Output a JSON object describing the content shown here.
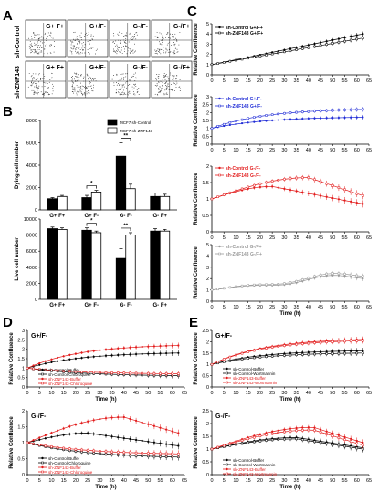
{
  "panel_labels": {
    "A": "A",
    "B": "B",
    "C": "C",
    "D": "D",
    "E": "E"
  },
  "panelA": {
    "row_labels": [
      "sh-Control",
      "sh-ZNF143"
    ],
    "col_labels": [
      "G+ F+",
      "G+/F-",
      "G-/F-",
      "G-/F+"
    ],
    "row2_col_labels": [
      "G+ F+",
      "G+/F-",
      "G-/F-",
      "G-/F+"
    ]
  },
  "colors": {
    "black": "#000000",
    "blue": "#1f2bd6",
    "red": "#e21a1a",
    "gray": "#9a9a9a"
  },
  "chart_data": [
    {
      "id": "B1",
      "type": "bar",
      "ylabel": "Dying cell number",
      "categories": [
        "G+ F+",
        "G+ F-",
        "G- F-",
        "G- F+"
      ],
      "ylim": [
        0,
        8000
      ],
      "yticks": [
        0,
        2000,
        4000,
        6000,
        8000
      ],
      "series": [
        {
          "name": "MCF7 sh-Control",
          "values": [
            1000,
            1100,
            4800,
            1200
          ],
          "err": [
            100,
            200,
            1200,
            300
          ]
        },
        {
          "name": "MCF7 sh-ZNF143",
          "values": [
            1200,
            1600,
            1900,
            1200
          ],
          "err": [
            100,
            150,
            400,
            200
          ]
        }
      ],
      "sig": [
        {
          "cat": 1,
          "text": "*"
        },
        {
          "cat": 2,
          "text": "**"
        }
      ]
    },
    {
      "id": "B2",
      "type": "bar",
      "ylabel": "Live cell number",
      "categories": [
        "G+ F+",
        "G+ F-",
        "G- F-",
        "G- F+"
      ],
      "ylim": [
        0,
        10000
      ],
      "yticks": [
        0,
        2000,
        4000,
        6000,
        8000,
        10000
      ],
      "series": [
        {
          "name": "MCF7 sh-Control",
          "values": [
            8800,
            8600,
            5100,
            8500
          ],
          "err": [
            200,
            300,
            1200,
            300
          ]
        },
        {
          "name": "MCF7 sh-ZNF143",
          "values": [
            8700,
            8300,
            8000,
            8500
          ],
          "err": [
            200,
            200,
            300,
            200
          ]
        }
      ],
      "sig": [
        {
          "cat": 1,
          "text": "*"
        },
        {
          "cat": 2,
          "text": "**"
        }
      ]
    },
    {
      "id": "C1",
      "type": "line",
      "ylabel": "Relative Confluence",
      "xlabel": "",
      "x_start": 0,
      "x_step": 2.5,
      "xlim": [
        0,
        65
      ],
      "ylim": [
        0,
        5
      ],
      "yticks": [
        0,
        1,
        2,
        3,
        4,
        5
      ],
      "series": [
        {
          "name": "sh-Control G+/F+",
          "color": "black",
          "marker": "filled",
          "y0": 1,
          "y1": 4.0,
          "shape": "lin"
        },
        {
          "name": "sh-ZNF143 G+/F+",
          "color": "black",
          "marker": "open",
          "y0": 1,
          "y1": 3.6,
          "shape": "lin"
        }
      ]
    },
    {
      "id": "C2",
      "type": "line",
      "ylabel": "Relative Confluence",
      "xlabel": "",
      "x_start": 0,
      "x_step": 2.5,
      "xlim": [
        0,
        65
      ],
      "ylim": [
        0,
        3
      ],
      "yticks": [
        0,
        0.5,
        1,
        1.5,
        2,
        2.5,
        3
      ],
      "series": [
        {
          "name": "sh-Control G+/F-",
          "color": "blue",
          "marker": "filled",
          "y0": 1,
          "y1": 1.7,
          "shape": "sat"
        },
        {
          "name": "sh-ZNF143 G+/F-",
          "color": "blue",
          "marker": "open",
          "y0": 1,
          "y1": 2.2,
          "shape": "sat"
        }
      ]
    },
    {
      "id": "C3",
      "type": "line",
      "ylabel": "Relative Confluence",
      "xlabel": "",
      "x_start": 0,
      "x_step": 2.5,
      "xlim": [
        0,
        65
      ],
      "ylim": [
        0,
        2.0
      ],
      "yticks": [
        0,
        0.5,
        1,
        1.5,
        2.0
      ],
      "series": [
        {
          "name": "sh-Control G-/F-",
          "color": "red",
          "marker": "filled",
          "y0": 1,
          "peak": 1.38,
          "peakx": 25,
          "y1": 0.85,
          "shape": "hump"
        },
        {
          "name": "sh-ZNF143 G-/F-",
          "color": "red",
          "marker": "open",
          "y0": 1,
          "peak": 1.65,
          "peakx": 40,
          "y1": 1.1,
          "shape": "hump"
        }
      ]
    },
    {
      "id": "C4",
      "type": "line",
      "ylabel": "Relative Confluence",
      "xlabel": "Time (h)",
      "x_start": 0,
      "x_step": 2.5,
      "xlim": [
        0,
        65
      ],
      "ylim": [
        0,
        5
      ],
      "yticks": [
        0,
        1,
        2,
        3,
        4,
        5
      ],
      "series": [
        {
          "name": "sh-Control G-/F+",
          "color": "gray",
          "marker": "filled",
          "y0": 1,
          "y1": 2.3,
          "shape": "wave"
        },
        {
          "name": "sh-ZNF143 G-/F+",
          "color": "gray",
          "marker": "open",
          "y0": 1,
          "y1": 2.5,
          "shape": "wave"
        }
      ]
    },
    {
      "id": "D1",
      "type": "line",
      "title": "G+/F-",
      "ylabel": "Relative  Confluence",
      "xlabel": "Time (h)",
      "x_start": 0,
      "x_step": 2.5,
      "xlim": [
        0,
        65
      ],
      "ylim": [
        0,
        3
      ],
      "yticks": [
        0,
        0.5,
        1,
        1.5,
        2,
        2.5,
        3
      ],
      "series": [
        {
          "name": "sh-Control-Buffer",
          "color": "black",
          "marker": "filled",
          "y0": 1,
          "y1": 1.8,
          "shape": "sat"
        },
        {
          "name": "sh-Control-Chloroquine",
          "color": "black",
          "marker": "open",
          "y0": 1,
          "y1": 0.6,
          "shape": "dec"
        },
        {
          "name": "sh-ZNF143-Buffer",
          "color": "red",
          "marker": "filled",
          "y0": 1,
          "y1": 2.2,
          "shape": "sat"
        },
        {
          "name": "sh-ZNF143-Chloroquine",
          "color": "red",
          "marker": "open",
          "y0": 1,
          "y1": 0.7,
          "shape": "dec"
        }
      ]
    },
    {
      "id": "D2",
      "type": "line",
      "title": "G-/F-",
      "ylabel": "Relative  Confluence",
      "xlabel": "Time (h)",
      "x_start": 0,
      "x_step": 2.5,
      "xlim": [
        0,
        65
      ],
      "ylim": [
        0,
        2.0
      ],
      "yticks": [
        0,
        0.5,
        1,
        1.5,
        2.0
      ],
      "series": [
        {
          "name": "sh-Control-Buffer",
          "color": "black",
          "marker": "filled",
          "y0": 1,
          "peak": 1.3,
          "peakx": 25,
          "y1": 0.9,
          "shape": "hump"
        },
        {
          "name": "sh-Control-Chloroquine",
          "color": "black",
          "marker": "open",
          "y0": 1,
          "y1": 0.55,
          "shape": "dec"
        },
        {
          "name": "sh-ZNF143-Buffer",
          "color": "red",
          "marker": "filled",
          "y0": 1,
          "peak": 1.8,
          "peakx": 40,
          "y1": 1.3,
          "shape": "hump"
        },
        {
          "name": "sh-ZNF143-Chloroquine",
          "color": "red",
          "marker": "open",
          "y0": 1,
          "y1": 0.65,
          "shape": "dec"
        }
      ]
    },
    {
      "id": "E1",
      "type": "line",
      "title": "G+/F-",
      "ylabel": "Relative  Confluence",
      "xlabel": "Time (h)",
      "x_start": 0,
      "x_step": 2.5,
      "xlim": [
        0,
        65
      ],
      "ylim": [
        0,
        2.5
      ],
      "yticks": [
        0,
        0.5,
        1,
        1.5,
        2,
        2.5
      ],
      "series": [
        {
          "name": "sh-Control-Buffer",
          "color": "black",
          "marker": "filled",
          "y0": 1,
          "y1": 1.6,
          "shape": "sat"
        },
        {
          "name": "sh-Control-Wortmannin",
          "color": "black",
          "marker": "open",
          "y0": 1,
          "y1": 1.5,
          "shape": "sat"
        },
        {
          "name": "sh-ZNF143-Buffer",
          "color": "red",
          "marker": "filled",
          "y0": 1,
          "y1": 2.1,
          "shape": "sat"
        },
        {
          "name": "sh-ZNF143-Wortmannin",
          "color": "red",
          "marker": "open",
          "y0": 1,
          "y1": 2.05,
          "shape": "sat"
        }
      ]
    },
    {
      "id": "E2",
      "type": "line",
      "title": "G-/F-",
      "ylabel": "Relative  Confluence",
      "xlabel": "Time (h)",
      "x_start": 0,
      "x_step": 2.5,
      "xlim": [
        0,
        65
      ],
      "ylim": [
        0,
        2.5
      ],
      "yticks": [
        0,
        0.5,
        1,
        1.5,
        2,
        2.5
      ],
      "series": [
        {
          "name": "sh-Control-Buffer",
          "color": "black",
          "marker": "filled",
          "y0": 1,
          "peak": 1.45,
          "peakx": 35,
          "y1": 1.05,
          "shape": "hump"
        },
        {
          "name": "sh-Control-Wortmannin",
          "color": "black",
          "marker": "open",
          "y0": 1,
          "peak": 1.4,
          "peakx": 35,
          "y1": 1.0,
          "shape": "hump"
        },
        {
          "name": "sh-ZNF143-Buffer",
          "color": "red",
          "marker": "filled",
          "y0": 1,
          "peak": 1.85,
          "peakx": 42,
          "y1": 1.25,
          "shape": "hump"
        },
        {
          "name": "sh-ZNF143-Wortmannin",
          "color": "red",
          "marker": "open",
          "y0": 1,
          "peak": 1.75,
          "peakx": 42,
          "y1": 1.15,
          "shape": "hump"
        }
      ]
    }
  ]
}
